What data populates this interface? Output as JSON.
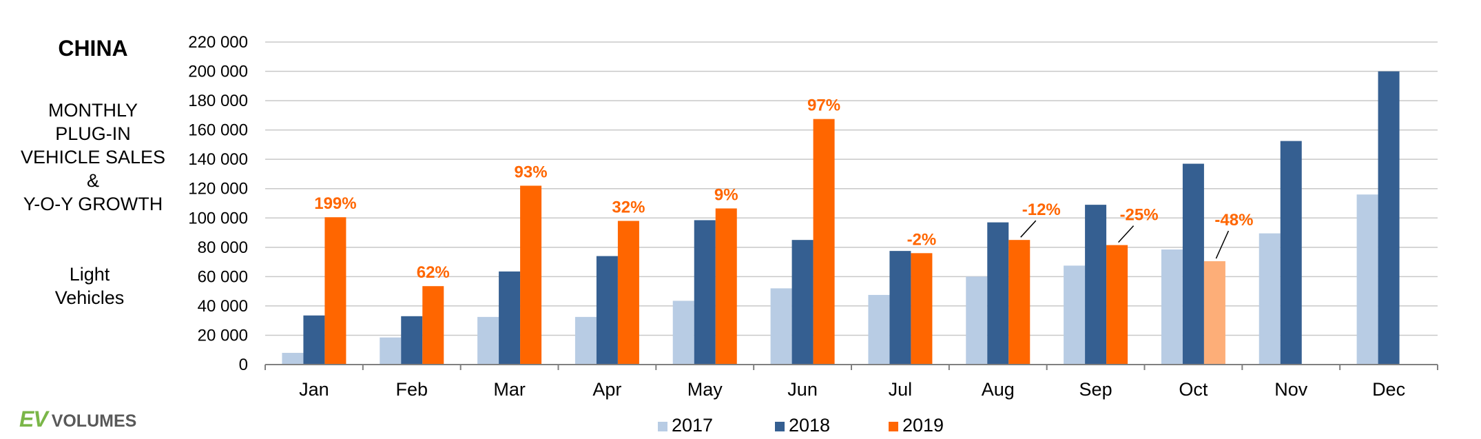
{
  "side_panel": {
    "title": "CHINA",
    "subtitle_lines": [
      "MONTHLY",
      "PLUG-IN",
      "VEHICLE SALES",
      "&",
      "Y-O-Y GROWTH"
    ],
    "segment_lines": [
      "Light",
      "Vehicles"
    ]
  },
  "logo": {
    "ev": "EV",
    "volumes": "VOLUMES",
    "ev_color": "#7ab648",
    "volumes_color": "#595959"
  },
  "chart_data": {
    "type": "bar",
    "categories": [
      "Jan",
      "Feb",
      "Mar",
      "Apr",
      "May",
      "Jun",
      "Jul",
      "Aug",
      "Sep",
      "Oct",
      "Nov",
      "Dec"
    ],
    "series": [
      {
        "name": "2017",
        "color": "#b8cce4",
        "values": [
          8000,
          18500,
          32500,
          32500,
          43500,
          52000,
          47500,
          60000,
          67500,
          78500,
          89500,
          116000
        ]
      },
      {
        "name": "2018",
        "color": "#355f91",
        "values": [
          33500,
          33000,
          63500,
          74000,
          98500,
          85000,
          77500,
          97000,
          109000,
          137000,
          152500,
          200000
        ]
      },
      {
        "name": "2019",
        "color": "#ff6600",
        "highlight_color": "#fdae78",
        "highlight_index": 9,
        "values": [
          100500,
          53500,
          122000,
          98000,
          106500,
          167500,
          76000,
          85000,
          81500,
          70500,
          null,
          null
        ]
      }
    ],
    "growth_labels": [
      "199%",
      "62%",
      "93%",
      "32%",
      "9%",
      "97%",
      "-2%",
      "-12%",
      "-25%",
      "-48%",
      "",
      ""
    ],
    "y_ticks": [
      0,
      20000,
      40000,
      60000,
      80000,
      100000,
      120000,
      140000,
      160000,
      180000,
      200000,
      220000
    ],
    "y_tick_labels": [
      "0",
      "20 000",
      "40 000",
      "60 000",
      "80 000",
      "100 000",
      "120 000",
      "140 000",
      "160 000",
      "180 000",
      "200 000",
      "220 000"
    ],
    "ylim": [
      0,
      220000
    ],
    "grid": true,
    "legend_position": "bottom-center"
  }
}
